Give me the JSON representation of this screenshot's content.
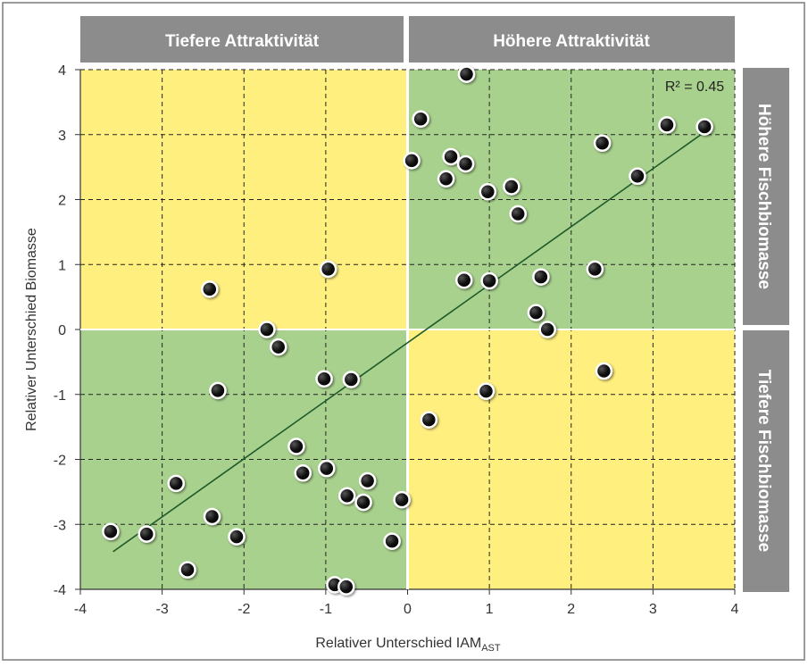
{
  "chart_data": {
    "type": "scatter",
    "title": "",
    "xlabel": "Relativer Unterschied IAM",
    "xlabel_sub": "AST",
    "ylabel": "Relativer Unterschied Biomasse",
    "xlim": [
      -4,
      4
    ],
    "ylim": [
      -4,
      4
    ],
    "xticks": [
      -4,
      -3,
      -2,
      -1,
      0,
      1,
      2,
      3,
      4
    ],
    "yticks": [
      -4,
      -3,
      -2,
      -1,
      0,
      1,
      2,
      3,
      4
    ],
    "grid": true,
    "r2_label": "R² = 0.45",
    "regression_line": {
      "x": [
        -3.6,
        3.62
      ],
      "y": [
        -3.42,
        3.03
      ]
    },
    "header_left": "Tiefere Attraktivität",
    "header_right": "Höhere Attraktivität",
    "side_top": "Höhere Fischbiomasse",
    "side_bottom": "Tiefere Fischbiomasse",
    "quadrant_colors": {
      "green": "#a9d18e",
      "yellow": "#ffef7f"
    },
    "points": [
      {
        "x": 0.72,
        "y": 3.93
      },
      {
        "x": 0.16,
        "y": 3.24
      },
      {
        "x": 3.17,
        "y": 3.15
      },
      {
        "x": 3.63,
        "y": 3.12
      },
      {
        "x": 2.38,
        "y": 2.87
      },
      {
        "x": 0.05,
        "y": 2.6
      },
      {
        "x": 0.53,
        "y": 2.66
      },
      {
        "x": 0.71,
        "y": 2.55
      },
      {
        "x": 0.47,
        "y": 2.32
      },
      {
        "x": 0.98,
        "y": 2.12
      },
      {
        "x": 1.27,
        "y": 2.2
      },
      {
        "x": 1.35,
        "y": 1.78
      },
      {
        "x": 2.81,
        "y": 2.36
      },
      {
        "x": -0.97,
        "y": 0.93
      },
      {
        "x": 2.29,
        "y": 0.93
      },
      {
        "x": 0.69,
        "y": 0.76
      },
      {
        "x": 1.0,
        "y": 0.75
      },
      {
        "x": 1.63,
        "y": 0.81
      },
      {
        "x": -2.42,
        "y": 0.62
      },
      {
        "x": 1.57,
        "y": 0.26
      },
      {
        "x": 1.71,
        "y": 0.0
      },
      {
        "x": -1.72,
        "y": 0.0
      },
      {
        "x": -1.58,
        "y": -0.27
      },
      {
        "x": 2.4,
        "y": -0.64
      },
      {
        "x": -1.02,
        "y": -0.76
      },
      {
        "x": -0.69,
        "y": -0.77
      },
      {
        "x": -2.32,
        "y": -0.94
      },
      {
        "x": 0.96,
        "y": -0.95
      },
      {
        "x": 0.26,
        "y": -1.39
      },
      {
        "x": -1.36,
        "y": -1.8
      },
      {
        "x": -1.28,
        "y": -2.21
      },
      {
        "x": -0.99,
        "y": -2.14
      },
      {
        "x": -0.49,
        "y": -2.33
      },
      {
        "x": -2.83,
        "y": -2.37
      },
      {
        "x": -0.74,
        "y": -2.56
      },
      {
        "x": -0.54,
        "y": -2.66
      },
      {
        "x": -0.07,
        "y": -2.62
      },
      {
        "x": -2.39,
        "y": -2.88
      },
      {
        "x": -3.63,
        "y": -3.11
      },
      {
        "x": -3.19,
        "y": -3.15
      },
      {
        "x": -2.09,
        "y": -3.19
      },
      {
        "x": -0.19,
        "y": -3.26
      },
      {
        "x": -2.69,
        "y": -3.7
      },
      {
        "x": -0.89,
        "y": -3.93
      },
      {
        "x": -0.75,
        "y": -3.96
      }
    ]
  }
}
